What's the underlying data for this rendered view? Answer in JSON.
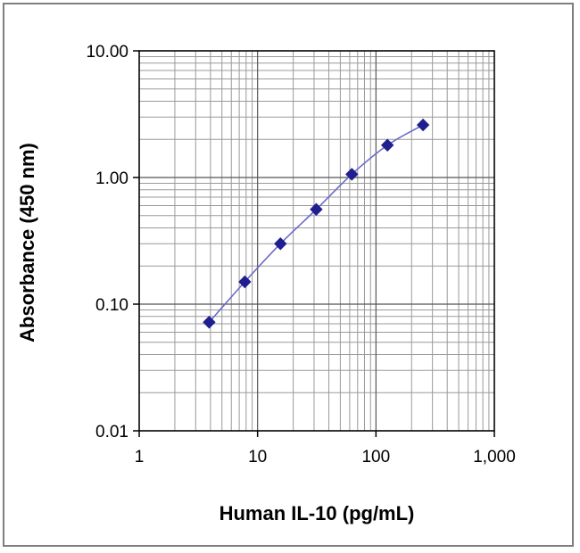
{
  "chart_data": {
    "type": "scatter",
    "xlabel": "Human IL-10 (pg/mL)",
    "ylabel": "Absorbance (450 nm)",
    "x_scale": "log",
    "y_scale": "log",
    "xlim": [
      1,
      1000
    ],
    "ylim": [
      0.01,
      10
    ],
    "x_ticks": [
      1,
      10,
      100,
      1000
    ],
    "x_tick_labels": [
      "1",
      "10",
      "100",
      "1,000"
    ],
    "y_ticks": [
      0.01,
      0.1,
      1,
      10
    ],
    "y_tick_labels": [
      "0.01",
      "0.10",
      "1.00",
      "10.00"
    ],
    "grid": true,
    "series": [
      {
        "x": [
          3.9,
          7.8,
          15.6,
          31.3,
          62.5,
          125,
          250
        ],
        "y": [
          0.072,
          0.15,
          0.3,
          0.56,
          1.06,
          1.8,
          2.6
        ],
        "marker": "diamond",
        "color": "#1f1f8f",
        "line_color": "#6b6bc7"
      }
    ]
  }
}
